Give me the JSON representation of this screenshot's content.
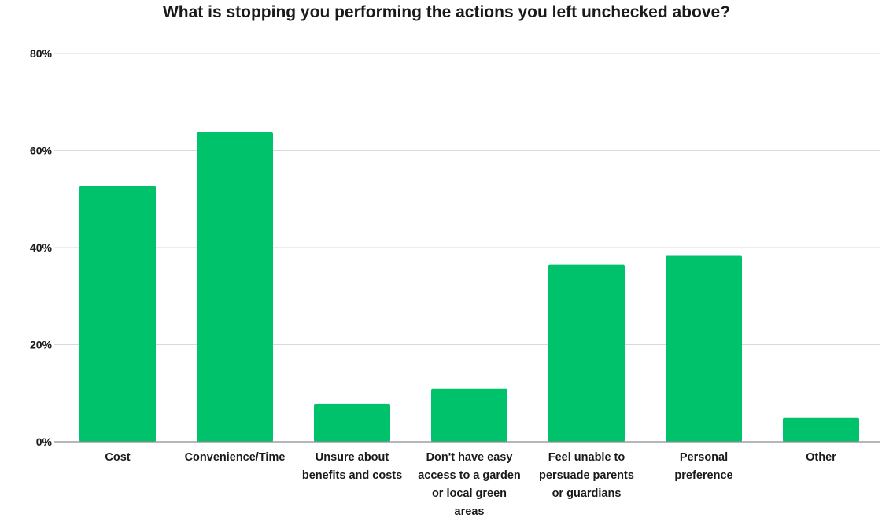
{
  "chart_data": {
    "type": "bar",
    "title": "What is stopping you performing the actions you left unchecked above?",
    "categories": [
      [
        "Cost"
      ],
      [
        "Convenience/Time"
      ],
      [
        "Unsure about",
        "benefits and costs"
      ],
      [
        "Don't have easy",
        "access to a garden",
        "or local green",
        "areas"
      ],
      [
        "Feel unable to",
        "persuade parents",
        "or guardians"
      ],
      [
        "Personal",
        "preference"
      ],
      [
        "Other"
      ]
    ],
    "values": [
      52.7,
      63.8,
      7.8,
      10.9,
      36.5,
      38.3,
      4.9
    ],
    "ylim": [
      0,
      80
    ],
    "yticks": [
      0,
      20,
      40,
      60,
      80
    ],
    "ytick_labels": [
      "0%",
      "20%",
      "40%",
      "60%",
      "80%"
    ],
    "xlabel": "",
    "ylabel": "",
    "grid": true,
    "colors": {
      "bar": "#00c26b",
      "grid": "#d9d9d9",
      "axis": "#8c8c8c"
    }
  }
}
